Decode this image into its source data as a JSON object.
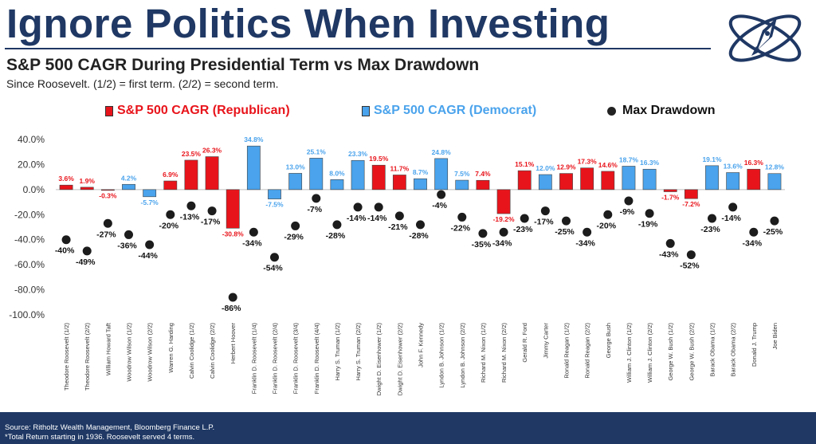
{
  "header": {
    "title": "Ignore Politics When Investing",
    "subtitle": "S&P 500 CAGR During Presidential Term vs Max Drawdown",
    "note": "Since Roosevelt. (1/2) = first term. (2/2) = second term."
  },
  "legend": {
    "republican": "S&P 500 CAGR (Republican)",
    "democrat": "S&P 500 CAGR (Democrat)",
    "drawdown": "Max Drawdown"
  },
  "colors": {
    "republican": "#e8141b",
    "democrat": "#4aa3ec",
    "drawdown": "#1c1c1c",
    "title": "#1f3864"
  },
  "chart_data": {
    "type": "bar",
    "ylim": [
      -100,
      40
    ],
    "yticks": [
      "40.0%",
      "20.0%",
      "0.0%",
      "-20.0%",
      "-40.0%",
      "-60.0%",
      "-80.0%",
      "-100.0%"
    ],
    "grid": false,
    "legend_position": "top",
    "categories": [
      "Theodore Roosevelt (1/2)",
      "Theodore Roosevelt (2/2)",
      "William Howard Taft",
      "Woodrow Wilson (1/2)",
      "Woodrow Wilson (2/2)",
      "Warren G. Harding",
      "Calvin Coolidge (1/2)",
      "Calvin Coolidge (2/2)",
      "Herbert Hoover",
      "Franklin D. Roosevelt (1/4)",
      "Franklin D. Roosevelt (2/4)",
      "Franklin D. Roosevelt (3/4)",
      "Franklin D. Roosevelt (4/4)",
      "Harry S. Truman (1/2)",
      "Harry S. Truman (2/2)",
      "Dwight D. Eisenhower (1/2)",
      "Dwight D. Eisenhower (2/2)",
      "John F. Kennedy",
      "Lyndon B. Johnson (1/2)",
      "Lyndon B. Johnson (2/2)",
      "Richard M. Nixon (1/2)",
      "Richard M. Nixon (2/2)",
      "Gerald R. Ford",
      "Jimmy Carter",
      "Ronald Reagan (1/2)",
      "Ronald Reagan (2/2)",
      "George Bush",
      "William J. Clinton (1/2)",
      "William J. Clinton (2/2)",
      "George W. Bush (1/2)",
      "George W. Bush (2/2)",
      "Barack Obama (1/2)",
      "Barack Obama (2/2)",
      "Donald J. Trump",
      "Joe Biden"
    ],
    "party": [
      "R",
      "R",
      "R",
      "D",
      "D",
      "R",
      "R",
      "R",
      "R",
      "D",
      "D",
      "D",
      "D",
      "D",
      "D",
      "R",
      "R",
      "D",
      "D",
      "D",
      "R",
      "R",
      "R",
      "D",
      "R",
      "R",
      "R",
      "D",
      "D",
      "R",
      "R",
      "D",
      "D",
      "R",
      "D"
    ],
    "cagr": [
      3.6,
      1.9,
      -0.3,
      4.2,
      -5.7,
      6.9,
      23.5,
      26.3,
      -30.8,
      34.8,
      -7.5,
      13.0,
      25.1,
      8.0,
      23.3,
      19.5,
      11.7,
      8.7,
      24.8,
      7.5,
      7.4,
      -19.2,
      15.1,
      12.0,
      12.9,
      17.3,
      14.6,
      18.7,
      16.3,
      -1.7,
      -7.2,
      19.1,
      13.6,
      16.3,
      12.8
    ],
    "cagr_labels": [
      "3.6%",
      "1.9%",
      "-0.3%",
      "4.2%",
      "-5.7%",
      "6.9%",
      "23.5%",
      "26.3%",
      "-30.8%",
      "34.8%",
      "-7.5%",
      "13.0%",
      "25.1%",
      "8.0%",
      "23.3%",
      "19.5%",
      "11.7%",
      "8.7%",
      "24.8%",
      "7.5%",
      "7.4%",
      "-19.2%",
      "15.1%",
      "12.0%",
      "12.9%",
      "17.3%",
      "14.6%",
      "18.7%",
      "16.3%",
      "-1.7%",
      "-7.2%",
      "19.1%",
      "13.6%",
      "16.3%",
      "12.8%"
    ],
    "max_drawdown": [
      -40,
      -49,
      -27,
      -36,
      -44,
      -20,
      -13,
      -17,
      -86,
      -34,
      -54,
      -29,
      -7,
      -28,
      -14,
      -14,
      -21,
      -28,
      -4,
      -22,
      -35,
      -34,
      -23,
      -17,
      -25,
      -34,
      -20,
      -9,
      -19,
      -43,
      -52,
      -23,
      -14,
      -34,
      -25
    ],
    "drawdown_labels": [
      "-40%",
      "-49%",
      "-27%",
      "-36%",
      "-44%",
      "-20%",
      "-13%",
      "-17%",
      "-86%",
      "-34%",
      "-54%",
      "-29%",
      "-7%",
      "-28%",
      "-14%",
      "-14%",
      "-21%",
      "-28%",
      "-4%",
      "-22%",
      "-35%",
      "-34%",
      "-23%",
      "-17%",
      "-25%",
      "-34%",
      "-20%",
      "-9%",
      "-19%",
      "-43%",
      "-52%",
      "-23%",
      "-14%",
      "-34%",
      "-25%"
    ]
  },
  "footer": {
    "source": "Source: Ritholtz Wealth Management, Bloomberg Finance L.P.",
    "footnote": "*Total Return starting in 1936. Roosevelt served 4 terms."
  }
}
